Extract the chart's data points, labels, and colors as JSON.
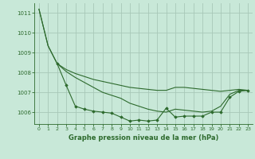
{
  "title": "Graphe pression niveau de la mer (hPa)",
  "background_color": "#c8e8d8",
  "grid_color": "#a8c8b8",
  "line_color": "#2d6a2d",
  "x_ticks": [
    0,
    1,
    2,
    3,
    4,
    5,
    6,
    7,
    8,
    9,
    10,
    11,
    12,
    13,
    14,
    15,
    16,
    17,
    18,
    19,
    20,
    21,
    22,
    23
  ],
  "y_ticks": [
    1006,
    1007,
    1008,
    1009,
    1010,
    1011
  ],
  "ylim": [
    1005.4,
    1011.5
  ],
  "xlim": [
    -0.5,
    23.5
  ],
  "series": [
    {
      "x": [
        0,
        1,
        2,
        3,
        4,
        5,
        6,
        7,
        8,
        9,
        10,
        11,
        12,
        13,
        14,
        15,
        16,
        17,
        18,
        19,
        20,
        21,
        22,
        23
      ],
      "y": [
        1011.2,
        1009.35,
        1008.45,
        1008.15,
        1007.95,
        1007.8,
        1007.65,
        1007.55,
        1007.45,
        1007.35,
        1007.25,
        1007.2,
        1007.15,
        1007.1,
        1007.1,
        1007.25,
        1007.25,
        1007.2,
        1007.15,
        1007.1,
        1007.05,
        1007.1,
        1007.15,
        1007.1
      ],
      "marker": null,
      "lw": 0.8
    },
    {
      "x": [
        0,
        1,
        2,
        3,
        4,
        5,
        6,
        7,
        8,
        9,
        10,
        11,
        12,
        13,
        14,
        15,
        16,
        17,
        18,
        19,
        20,
        21,
        22,
        23
      ],
      "y": [
        1011.2,
        1009.35,
        1008.45,
        1008.05,
        1007.75,
        1007.5,
        1007.25,
        1007.0,
        1006.85,
        1006.7,
        1006.45,
        1006.3,
        1006.15,
        1006.05,
        1006.0,
        1006.15,
        1006.1,
        1006.05,
        1006.0,
        1006.05,
        1006.3,
        1006.9,
        1007.1,
        1007.1
      ],
      "marker": null,
      "lw": 0.8
    },
    {
      "x": [
        2,
        3,
        4,
        5,
        6,
        7,
        8,
        9,
        10,
        11,
        12,
        13,
        14,
        15,
        16,
        17,
        18,
        19,
        20,
        21,
        22,
        23
      ],
      "y": [
        1008.45,
        1007.35,
        1006.3,
        1006.15,
        1006.05,
        1006.0,
        1005.95,
        1005.75,
        1005.55,
        1005.6,
        1005.55,
        1005.6,
        1006.2,
        1005.75,
        1005.8,
        1005.8,
        1005.8,
        1006.0,
        1006.0,
        1006.75,
        1007.05,
        1007.1
      ],
      "marker": "D",
      "lw": 0.8
    }
  ]
}
